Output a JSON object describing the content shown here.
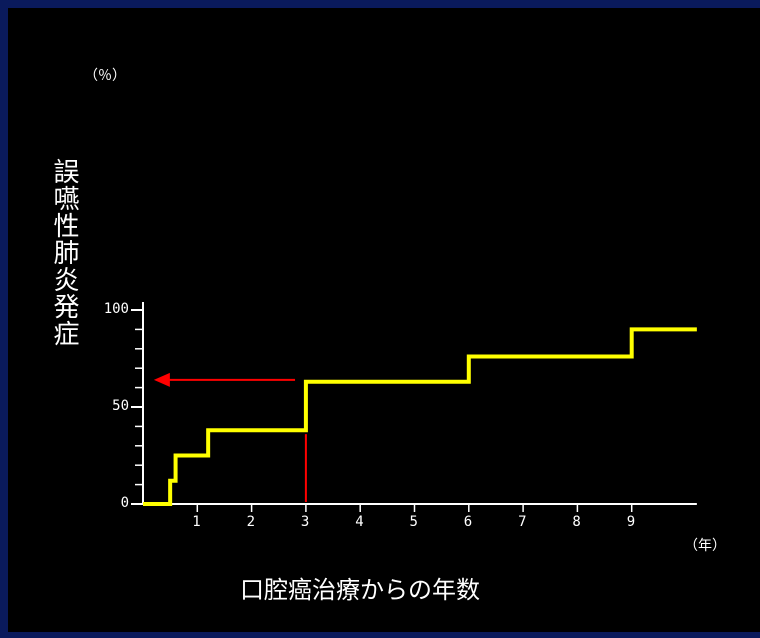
{
  "chart_data": {
    "type": "line",
    "step": true,
    "series": [
      {
        "x": [
          0,
          0.5,
          0.5,
          0.6,
          0.6,
          1.2,
          1.2,
          3,
          3,
          6,
          6,
          9,
          9,
          10.2
        ],
        "y": [
          0,
          0,
          12,
          12,
          25,
          25,
          38,
          38,
          63,
          63,
          76,
          76,
          90,
          90
        ],
        "color": "#ffff00"
      }
    ],
    "xlim": [
      0,
      10.2
    ],
    "ylim": [
      0,
      100
    ],
    "x_ticks": [
      "1",
      "2",
      "3",
      "4",
      "5",
      "6",
      "7",
      "8",
      "9"
    ],
    "y_ticks": [
      "0",
      "50",
      "100"
    ],
    "y_minor_ticks": [
      10,
      20,
      30,
      40,
      60,
      70,
      80,
      90
    ],
    "x_unit": "（年）",
    "y_unit": "（％）",
    "xlabel": "口腔癌治療からの年数",
    "ylabel": "誤嚥性肺炎発症",
    "grid": false,
    "annotations": [
      {
        "type": "vertical-line",
        "x": 3,
        "y_from": 1,
        "y_to": 36,
        "color": "#ff0000"
      },
      {
        "type": "arrow",
        "x_from": 2.8,
        "x_to": 0.2,
        "y": 64,
        "color": "#ff0000"
      }
    ]
  },
  "colors": {
    "background": "#0a1a5c",
    "plot_background": "#000000",
    "axis": "#ffffff"
  }
}
